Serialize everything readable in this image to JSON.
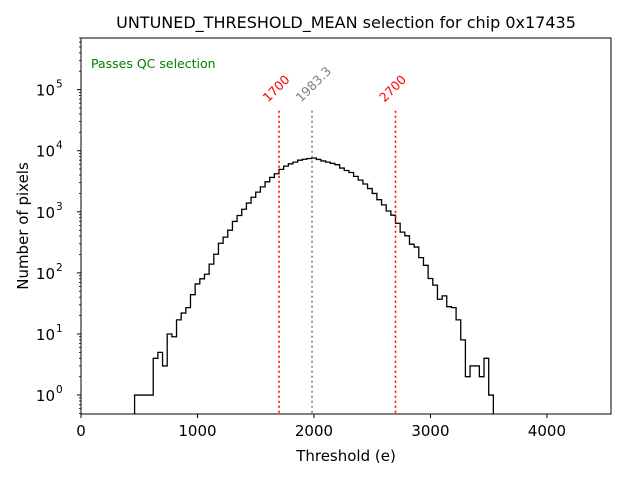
{
  "chart_data": {
    "type": "histogram",
    "title": "UNTUNED_THRESHOLD_MEAN selection for chip 0x17435",
    "xlabel": "Threshold (e)",
    "ylabel": "Number of pixels",
    "xlim": [
      0,
      4550
    ],
    "ylim": [
      0.49,
      700000
    ],
    "yscale": "log",
    "grid": false,
    "x_ticks": [
      0,
      1000,
      2000,
      3000,
      4000
    ],
    "x_tick_labels": [
      "0",
      "1000",
      "2000",
      "3000",
      "4000"
    ],
    "y_ticks": [
      1,
      10,
      100,
      1000,
      10000,
      100000
    ],
    "y_tick_labels": [
      {
        "base": "10",
        "exp": "0"
      },
      {
        "base": "10",
        "exp": "1"
      },
      {
        "base": "10",
        "exp": "2"
      },
      {
        "base": "10",
        "exp": "3"
      },
      {
        "base": "10",
        "exp": "4"
      },
      {
        "base": "10",
        "exp": "5"
      }
    ],
    "bin_start": 460,
    "bin_width": 40,
    "counts": [
      1,
      1,
      1,
      1,
      4,
      5,
      3,
      10,
      9,
      17,
      22,
      27,
      44,
      66,
      80,
      95,
      139,
      202,
      306,
      385,
      500,
      695,
      870,
      1100,
      1390,
      1730,
      2100,
      2560,
      3100,
      3650,
      4200,
      4950,
      5600,
      6100,
      6500,
      7000,
      7250,
      7450,
      7600,
      7200,
      6800,
      6500,
      6200,
      5900,
      5200,
      4750,
      4400,
      3800,
      3300,
      2850,
      2400,
      2000,
      1580,
      1300,
      1030,
      880,
      650,
      465,
      405,
      295,
      265,
      178,
      133,
      81,
      63,
      37,
      42,
      28,
      27,
      17,
      8,
      2,
      3,
      3,
      2,
      4,
      1
    ],
    "histogram_color": "#000000",
    "vlines": [
      {
        "x": 1700,
        "label": "1700",
        "color": "#ff0000",
        "ymax": 45000
      },
      {
        "x": 1983.3,
        "label": "1983.3",
        "color": "#808080",
        "ymax": 45000
      },
      {
        "x": 2700,
        "label": "2700",
        "color": "#ff0000",
        "ymax": 45000
      }
    ],
    "annotation": {
      "text": "Passes QC selection",
      "color": "#008000",
      "position": "top-left"
    }
  }
}
